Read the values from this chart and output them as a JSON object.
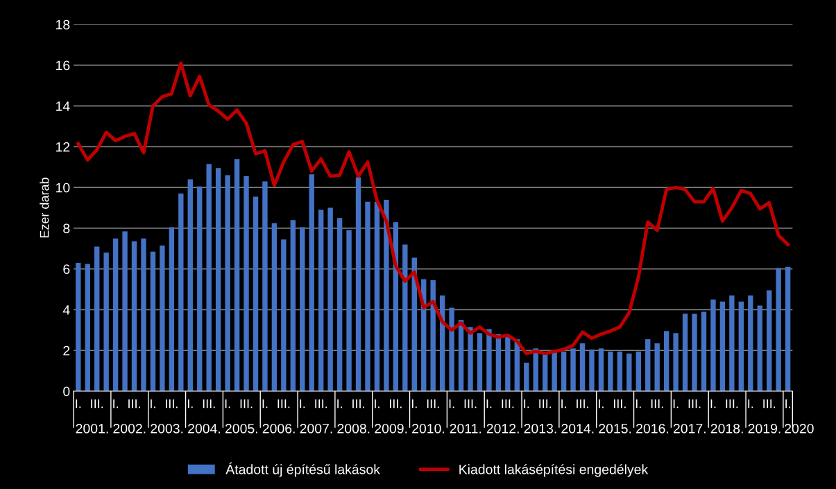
{
  "chart_data": {
    "type": "bar",
    "categories": [
      "I.",
      null,
      "III.",
      null,
      "I.",
      null,
      "III.",
      null,
      "I.",
      null,
      "III.",
      null,
      "I.",
      null,
      "III.",
      null,
      "I.",
      null,
      "III.",
      null,
      "I.",
      null,
      "III.",
      null,
      "I.",
      null,
      "III.",
      null,
      "I.",
      null,
      "III.",
      null,
      "I.",
      null,
      "III.",
      null,
      "I.",
      null,
      "III.",
      null,
      "I.",
      null,
      "III.",
      null,
      "I.",
      null,
      "III.",
      null,
      "I.",
      null,
      "III.",
      null,
      "I.",
      null,
      "III.",
      null,
      "I.",
      null,
      "III.",
      null,
      "I.",
      null,
      "III.",
      null,
      "I.",
      null,
      "III.",
      null,
      "I.",
      null,
      "III.",
      null,
      "I.",
      null,
      "III.",
      null,
      "I."
    ],
    "ylabel": "Ezer darab",
    "ylim": [
      0,
      18
    ],
    "yticks": [
      0,
      2,
      4,
      6,
      8,
      10,
      12,
      14,
      16,
      18
    ],
    "grid": "y",
    "legend": "bottom",
    "annotations": [
      "2001.",
      "2002.",
      "2003.",
      "2004.",
      "2005.",
      "2006.",
      "2007.",
      "2008.",
      "2009.",
      "2010.",
      "2011.",
      "2012.",
      "2013.",
      "2014.",
      "2015.",
      "2016.",
      "2017.",
      "2018.",
      "2019.",
      "2020"
    ],
    "series": [
      {
        "name": "Átadott új építésű lakások",
        "color": "#4472c4",
        "values": [
          6.3,
          6.25,
          7.1,
          6.8,
          7.5,
          7.85,
          7.35,
          7.5,
          6.85,
          7.15,
          8.05,
          9.7,
          10.4,
          10.05,
          11.15,
          10.95,
          10.6,
          11.4,
          10.55,
          9.55,
          10.3,
          8.25,
          7.45,
          8.4,
          8.05,
          10.65,
          8.9,
          9.0,
          8.5,
          7.9,
          10.5,
          9.3,
          9.3,
          9.4,
          8.3,
          7.2,
          6.55,
          5.5,
          5.45,
          4.7,
          4.1,
          3.5,
          3.15,
          2.85,
          3.05,
          2.8,
          2.65,
          2.55,
          1.4,
          2.1,
          1.9,
          1.9,
          1.95,
          2.1,
          2.35,
          2.05,
          2.1,
          1.95,
          1.95,
          1.85,
          1.95,
          2.55,
          2.35,
          2.95,
          2.85,
          3.8,
          3.8,
          3.9,
          4.5,
          4.4,
          4.7,
          4.4,
          4.7,
          4.2,
          4.95,
          6.05,
          6.1
        ]
      },
      {
        "name": "Kiadott lakásépítési engedélyek",
        "type": "line",
        "color": "#c00000",
        "values": [
          12.15,
          11.35,
          11.85,
          12.7,
          12.3,
          12.5,
          12.65,
          11.7,
          14.0,
          14.45,
          14.6,
          16.1,
          14.5,
          15.45,
          14.05,
          13.75,
          13.35,
          13.8,
          13.15,
          11.65,
          11.8,
          10.1,
          11.25,
          12.1,
          12.25,
          10.8,
          11.4,
          10.55,
          10.6,
          11.75,
          10.55,
          11.25,
          9.35,
          8.35,
          6.15,
          5.4,
          5.85,
          4.1,
          4.4,
          3.4,
          3.0,
          3.35,
          2.85,
          3.15,
          2.8,
          2.65,
          2.75,
          2.45,
          1.85,
          1.95,
          1.85,
          1.95,
          2.05,
          2.25,
          2.9,
          2.6,
          2.8,
          2.95,
          3.15,
          3.85,
          5.6,
          8.3,
          7.9,
          9.9,
          10.0,
          9.9,
          9.3,
          9.3,
          9.95,
          8.35,
          9.0,
          9.85,
          9.7,
          8.95,
          9.25,
          7.65,
          7.2
        ]
      }
    ]
  }
}
